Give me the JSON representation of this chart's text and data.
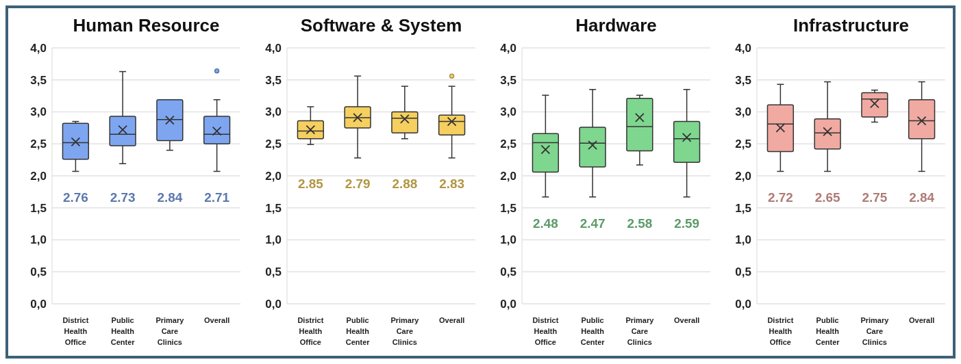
{
  "chart_data": [
    {
      "type": "box",
      "title": "Human Resource",
      "categories": [
        "District Health Office",
        "Public Health Center",
        "Primary Care Clinics",
        "Overall"
      ],
      "ylim": [
        0,
        4
      ],
      "yticks": [
        {
          "value": 0,
          "label": "0,0"
        },
        {
          "value": 0.5,
          "label": "0,5"
        },
        {
          "value": 1,
          "label": "1,0"
        },
        {
          "value": 1.5,
          "label": "1,5"
        },
        {
          "value": 2,
          "label": "2,0"
        },
        {
          "value": 2.5,
          "label": "2,5"
        },
        {
          "value": 3,
          "label": "3,0"
        },
        {
          "value": 3.5,
          "label": "3,5"
        },
        {
          "value": 4,
          "label": "4,0"
        }
      ],
      "grid": "y",
      "series": [
        {
          "color": "#7ea6f0",
          "boxes": [
            {
              "low": 2.07,
              "q1": 2.26,
              "median": 2.52,
              "q3": 2.82,
              "high": 2.85,
              "mean": 2.53
            },
            {
              "low": 2.19,
              "q1": 2.47,
              "median": 2.65,
              "q3": 2.93,
              "high": 3.63,
              "mean": 2.72
            },
            {
              "low": 2.4,
              "q1": 2.55,
              "median": 2.88,
              "q3": 3.19,
              "high": 3.19,
              "mean": 2.87
            },
            {
              "low": 2.07,
              "q1": 2.5,
              "median": 2.65,
              "q3": 2.93,
              "high": 3.19,
              "mean": 2.7,
              "outliers": [
                3.64
              ]
            }
          ]
        }
      ],
      "annotations": [
        "2.76",
        "2.73",
        "2.84",
        "2.71"
      ]
    },
    {
      "type": "box",
      "title": "Software & System",
      "categories": [
        "District Health Office",
        "Public Health Center",
        "Primary Care Clinics",
        "Overall"
      ],
      "ylim": [
        0,
        4
      ],
      "yticks": [
        {
          "value": 0,
          "label": "0,0"
        },
        {
          "value": 0.5,
          "label": "0,5"
        },
        {
          "value": 1,
          "label": "1,0"
        },
        {
          "value": 1.5,
          "label": "1,5"
        },
        {
          "value": 2,
          "label": "2,0"
        },
        {
          "value": 2.5,
          "label": "2,5"
        },
        {
          "value": 3,
          "label": "3,0"
        },
        {
          "value": 3.5,
          "label": "3,5"
        },
        {
          "value": 4,
          "label": "4,0"
        }
      ],
      "grid": "y",
      "series": [
        {
          "color": "#f5cf5f",
          "boxes": [
            {
              "low": 2.49,
              "q1": 2.58,
              "median": 2.7,
              "q3": 2.86,
              "high": 3.08,
              "mean": 2.72
            },
            {
              "low": 2.28,
              "q1": 2.75,
              "median": 2.91,
              "q3": 3.08,
              "high": 3.56,
              "mean": 2.91
            },
            {
              "low": 2.58,
              "q1": 2.67,
              "median": 2.9,
              "q3": 3,
              "high": 3.4,
              "mean": 2.89
            },
            {
              "low": 2.28,
              "q1": 2.64,
              "median": 2.85,
              "q3": 2.95,
              "high": 3.4,
              "mean": 2.85,
              "outliers": [
                3.56
              ]
            }
          ]
        }
      ],
      "annotations": [
        "2.85",
        "2.79",
        "2.88",
        "2.83"
      ]
    },
    {
      "type": "box",
      "title": "Hardware",
      "categories": [
        "District Health Office",
        "Public Health Center",
        "Primary Care Clinics",
        "Overall"
      ],
      "ylim": [
        0,
        4
      ],
      "yticks": [
        {
          "value": 0,
          "label": "0,0"
        },
        {
          "value": 0.5,
          "label": "0,5"
        },
        {
          "value": 1,
          "label": "1,0"
        },
        {
          "value": 1.5,
          "label": "1,5"
        },
        {
          "value": 2,
          "label": "2,0"
        },
        {
          "value": 2.5,
          "label": "2,5"
        },
        {
          "value": 3,
          "label": "3,0"
        },
        {
          "value": 3.5,
          "label": "3,5"
        },
        {
          "value": 4,
          "label": "4,0"
        }
      ],
      "grid": "y",
      "series": [
        {
          "color": "#7fd68f",
          "boxes": [
            {
              "low": 1.67,
              "q1": 2.06,
              "median": 2.52,
              "q3": 2.66,
              "high": 3.26,
              "mean": 2.41
            },
            {
              "low": 1.67,
              "q1": 2.14,
              "median": 2.51,
              "q3": 2.76,
              "high": 3.35,
              "mean": 2.48
            },
            {
              "low": 2.17,
              "q1": 2.39,
              "median": 2.77,
              "q3": 3.21,
              "high": 3.26,
              "mean": 2.91
            },
            {
              "low": 1.67,
              "q1": 2.21,
              "median": 2.58,
              "q3": 2.85,
              "high": 3.35,
              "mean": 2.6
            }
          ]
        }
      ],
      "annotations": [
        "2.48",
        "2.47",
        "2.58",
        "2.59"
      ]
    },
    {
      "type": "box",
      "title": "Infrastructure",
      "categories": [
        "District Health Office",
        "Public Health Center",
        "Primary Care Clinics",
        "Overall"
      ],
      "ylim": [
        0,
        4
      ],
      "yticks": [
        {
          "value": 0,
          "label": "0,0"
        },
        {
          "value": 0.5,
          "label": "0,5"
        },
        {
          "value": 1,
          "label": "1,0"
        },
        {
          "value": 1.5,
          "label": "1,5"
        },
        {
          "value": 2,
          "label": "2,0"
        },
        {
          "value": 2.5,
          "label": "2,5"
        },
        {
          "value": 3,
          "label": "3,0"
        },
        {
          "value": 3.5,
          "label": "3,5"
        },
        {
          "value": 4,
          "label": "4,0"
        }
      ],
      "grid": "y",
      "series": [
        {
          "color": "#f0aaa2",
          "boxes": [
            {
              "low": 2.07,
              "q1": 2.38,
              "median": 2.81,
              "q3": 3.11,
              "high": 3.43,
              "mean": 2.75
            },
            {
              "low": 2.07,
              "q1": 2.42,
              "median": 2.67,
              "q3": 2.89,
              "high": 3.47,
              "mean": 2.69
            },
            {
              "low": 2.84,
              "q1": 2.92,
              "median": 3.2,
              "q3": 3.3,
              "high": 3.34,
              "mean": 3.13
            },
            {
              "low": 2.07,
              "q1": 2.58,
              "median": 2.86,
              "q3": 3.19,
              "high": 3.47,
              "mean": 2.86
            }
          ]
        }
      ],
      "annotations": [
        "2.72",
        "2.65",
        "2.75",
        "2.84"
      ]
    }
  ]
}
